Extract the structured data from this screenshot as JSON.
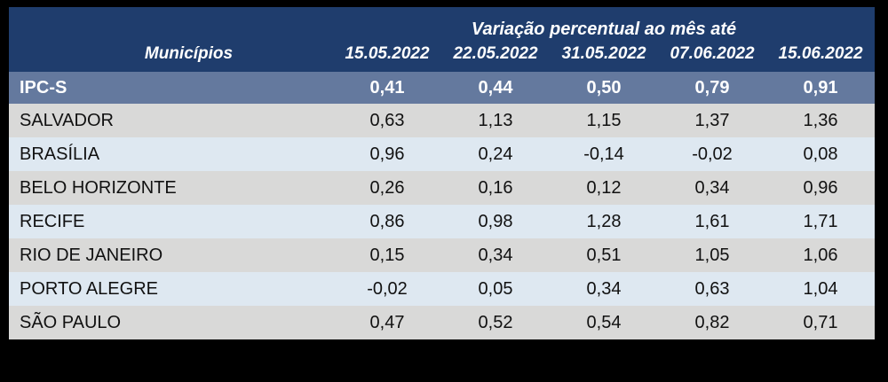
{
  "table": {
    "group_header": "Variação percentual ao mês até",
    "municipios_header": "Municípios",
    "date_headers": [
      "15.05.2022",
      "22.05.2022",
      "31.05.2022",
      "07.06.2022",
      "15.06.2022"
    ],
    "ipcs": {
      "label": "IPC-S",
      "values": [
        "0,41",
        "0,44",
        "0,50",
        "0,79",
        "0,91"
      ]
    },
    "rows": [
      {
        "label": "SALVADOR",
        "values": [
          "0,63",
          "1,13",
          "1,15",
          "1,37",
          "1,36"
        ]
      },
      {
        "label": "BRASÍLIA",
        "values": [
          "0,96",
          "0,24",
          "-0,14",
          "-0,02",
          "0,08"
        ]
      },
      {
        "label": "BELO HORIZONTE",
        "values": [
          "0,26",
          "0,16",
          "0,12",
          "0,34",
          "0,96"
        ]
      },
      {
        "label": "RECIFE",
        "values": [
          "0,86",
          "0,98",
          "1,28",
          "1,61",
          "1,71"
        ]
      },
      {
        "label": "RIO DE JANEIRO",
        "values": [
          "0,15",
          "0,34",
          "0,51",
          "1,05",
          "1,06"
        ]
      },
      {
        "label": "PORTO ALEGRE",
        "values": [
          "-0,02",
          "0,05",
          "0,34",
          "0,63",
          "1,04"
        ]
      },
      {
        "label": "SÃO PAULO",
        "values": [
          "0,47",
          "0,52",
          "0,54",
          "0,82",
          "0,71"
        ]
      }
    ],
    "colors": {
      "background": "#000000",
      "header_navy": "#1F3D6D",
      "summary_slate_blue": "#64799E",
      "row_gray": "#D9D9D8",
      "row_light_blue": "#DEE8F1",
      "header_text": "#FFFFFF",
      "body_text": "#111111"
    }
  },
  "chart_data": {
    "type": "table",
    "title": "Variação percentual ao mês até",
    "row_header": "Municípios",
    "columns": [
      "15.05.2022",
      "22.05.2022",
      "31.05.2022",
      "07.06.2022",
      "15.06.2022"
    ],
    "rows": [
      {
        "name": "IPC-S",
        "values": [
          0.41,
          0.44,
          0.5,
          0.79,
          0.91
        ]
      },
      {
        "name": "SALVADOR",
        "values": [
          0.63,
          1.13,
          1.15,
          1.37,
          1.36
        ]
      },
      {
        "name": "BRASÍLIA",
        "values": [
          0.96,
          0.24,
          -0.14,
          -0.02,
          0.08
        ]
      },
      {
        "name": "BELO HORIZONTE",
        "values": [
          0.26,
          0.16,
          0.12,
          0.34,
          0.96
        ]
      },
      {
        "name": "RECIFE",
        "values": [
          0.86,
          0.98,
          1.28,
          1.61,
          1.71
        ]
      },
      {
        "name": "RIO DE JANEIRO",
        "values": [
          0.15,
          0.34,
          0.51,
          1.05,
          1.06
        ]
      },
      {
        "name": "PORTO ALEGRE",
        "values": [
          -0.02,
          0.05,
          0.34,
          0.63,
          1.04
        ]
      },
      {
        "name": "SÃO PAULO",
        "values": [
          0.47,
          0.52,
          0.54,
          0.82,
          0.71
        ]
      }
    ],
    "notes": "IPC-S price index, percentage change per month up to each date, decimal comma formatting"
  }
}
